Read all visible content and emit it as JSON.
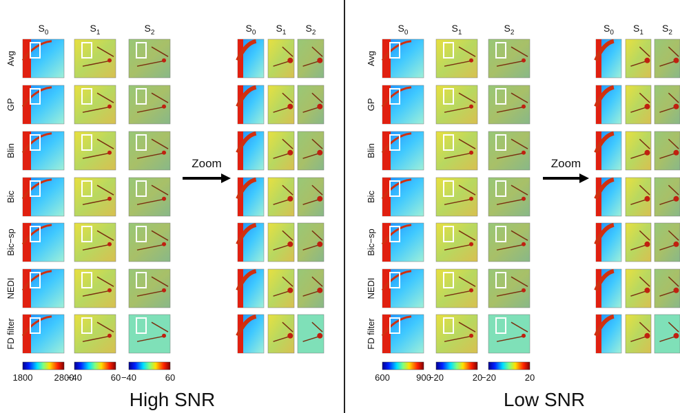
{
  "panels": [
    {
      "column_headers": [
        {
          "base": "S",
          "sub": "0"
        },
        {
          "base": "S",
          "sub": "1"
        },
        {
          "base": "S",
          "sub": "2"
        }
      ],
      "zoom_headers": [
        {
          "base": "S",
          "sub": "0"
        },
        {
          "base": "S",
          "sub": "1"
        },
        {
          "base": "S",
          "sub": "2"
        }
      ],
      "row_labels": [
        "Avg",
        "GP",
        "Blin",
        "Bic",
        "Bic−sp",
        "NEDI",
        "FD filter"
      ],
      "zoom_label": "Zoom",
      "colorbars": [
        {
          "min": "1800",
          "max": "2800"
        },
        {
          "min": "−40",
          "max": "60"
        },
        {
          "min": "−40",
          "max": "60"
        }
      ],
      "title": "High SNR"
    },
    {
      "column_headers": [
        {
          "base": "S",
          "sub": "0"
        },
        {
          "base": "S",
          "sub": "1"
        },
        {
          "base": "S",
          "sub": "2"
        }
      ],
      "zoom_headers": [
        {
          "base": "S",
          "sub": "0"
        },
        {
          "base": "S",
          "sub": "1"
        },
        {
          "base": "S",
          "sub": "2"
        }
      ],
      "row_labels": [
        "Avg",
        "GP",
        "Blin",
        "Bic",
        "Bic−sp",
        "NEDI",
        "FD filter"
      ],
      "zoom_label": "Zoom",
      "colorbars": [
        {
          "min": "600",
          "max": "900"
        },
        {
          "min": "−20",
          "max": "20"
        },
        {
          "min": "−20",
          "max": "20"
        }
      ],
      "title": "Low SNR"
    }
  ]
}
